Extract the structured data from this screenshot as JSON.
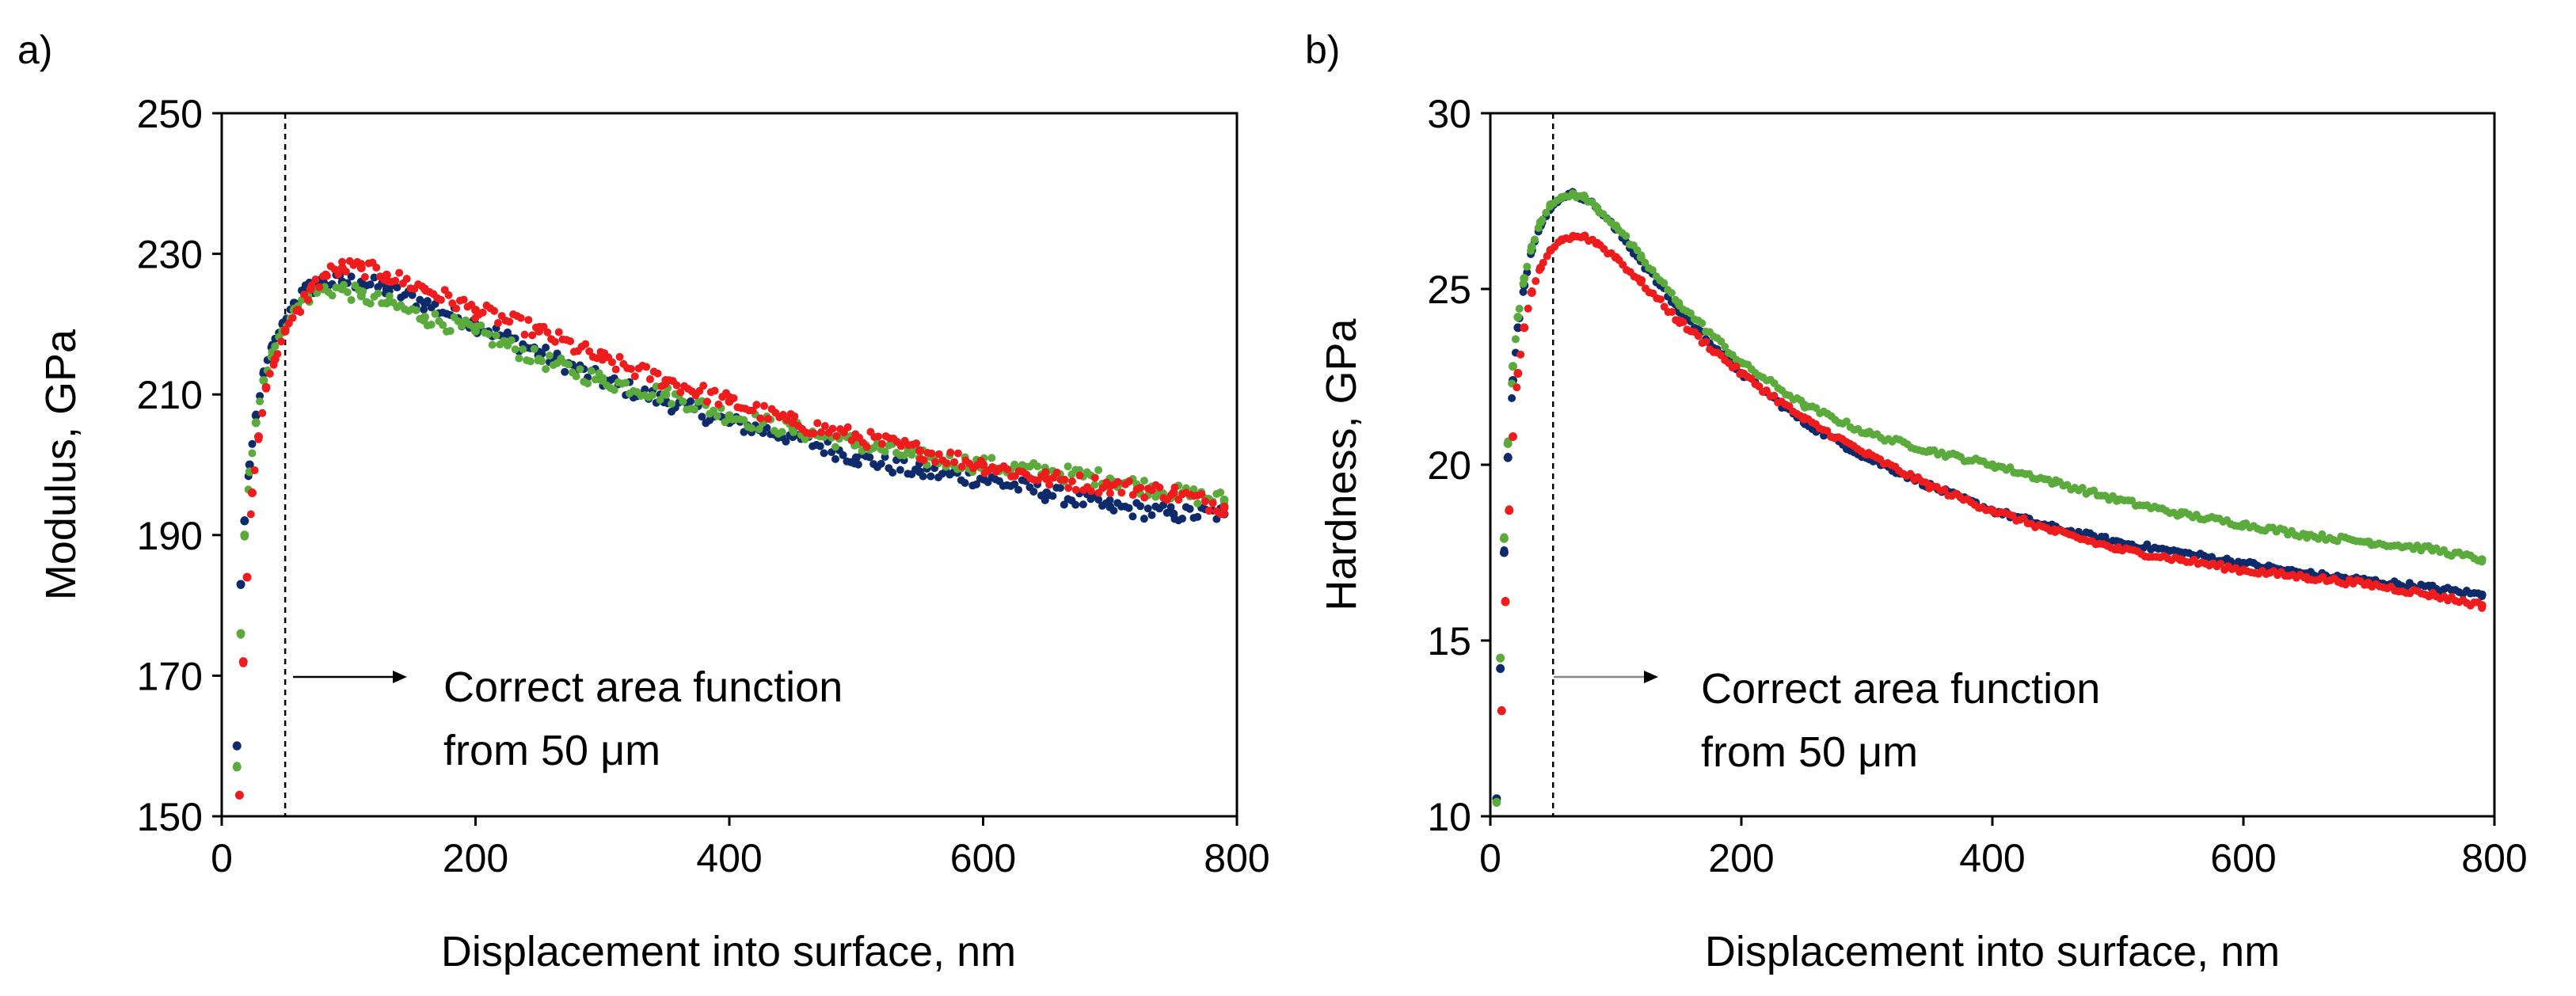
{
  "panels": [
    {
      "label": "a)",
      "annotation": [
        "Correct area function",
        "from 50 μm"
      ]
    },
    {
      "label": "b)",
      "annotation": [
        "Correct area function",
        "from 50 μm"
      ]
    }
  ],
  "colors": {
    "navy": "#0d2a6b",
    "green": "#5aaa3c",
    "red": "#ee1c1c"
  },
  "chart_data": [
    {
      "type": "scatter",
      "title": "",
      "xlabel": "Displacement into surface, nm",
      "ylabel": "Modulus, GPa",
      "xlim": [
        0,
        800
      ],
      "ylim": [
        150,
        250
      ],
      "xticks": [
        0,
        200,
        400,
        600,
        800
      ],
      "yticks": [
        150,
        170,
        190,
        210,
        230,
        250
      ],
      "grid": false,
      "reference_line_x": 50,
      "series": [
        {
          "name": "navy",
          "color": "#0d2a6b",
          "x": [
            12,
            15,
            18,
            22,
            27,
            33,
            40,
            48,
            57,
            68,
            80,
            95,
            110,
            130,
            160,
            200,
            250,
            300,
            350,
            400,
            450,
            500,
            550,
            600,
            650,
            700,
            750,
            790
          ],
          "y": [
            160,
            183,
            192,
            200,
            207,
            213,
            217,
            220,
            223,
            225,
            226,
            226,
            226,
            225,
            223,
            220,
            216,
            212,
            209,
            206,
            204,
            201,
            199,
            198,
            196,
            194,
            193,
            193
          ]
        },
        {
          "name": "green",
          "color": "#5aaa3c",
          "x": [
            12,
            15,
            18,
            22,
            27,
            33,
            40,
            48,
            57,
            68,
            80,
            95,
            110,
            130,
            160,
            200,
            250,
            300,
            350,
            400,
            450,
            500,
            550,
            600,
            650,
            700,
            750,
            790
          ],
          "y": [
            157,
            176,
            190,
            199,
            206,
            212,
            216,
            219,
            222,
            224,
            225,
            225,
            224,
            223,
            221,
            219,
            215,
            212,
            210,
            207,
            205,
            203,
            201,
            200,
            199,
            198,
            196,
            195
          ]
        },
        {
          "name": "red",
          "color": "#ee1c1c",
          "x": [
            14,
            17,
            20,
            24,
            29,
            35,
            42,
            50,
            60,
            70,
            82,
            95,
            110,
            130,
            160,
            200,
            250,
            300,
            350,
            400,
            450,
            500,
            550,
            600,
            650,
            700,
            750,
            790
          ],
          "y": [
            153,
            172,
            184,
            196,
            204,
            211,
            215,
            219,
            222,
            225,
            227,
            228,
            228,
            227,
            225,
            222,
            219,
            215,
            212,
            209,
            206,
            204,
            202,
            200,
            198,
            197,
            196,
            194
          ]
        }
      ]
    },
    {
      "type": "scatter",
      "title": "",
      "xlabel": "Displacement into surface, nm",
      "ylabel": "Hardness, GPa",
      "xlim": [
        0,
        800
      ],
      "ylim": [
        10,
        30
      ],
      "xticks": [
        0,
        200,
        400,
        600,
        800
      ],
      "yticks": [
        10,
        15,
        20,
        25,
        30
      ],
      "grid": false,
      "reference_line_x": 50,
      "series": [
        {
          "name": "navy",
          "color": "#0d2a6b",
          "x": [
            5,
            8,
            11,
            14,
            18,
            22,
            27,
            33,
            40,
            48,
            57,
            66,
            75,
            85,
            100,
            120,
            150,
            200,
            250,
            300,
            350,
            400,
            450,
            500,
            550,
            600,
            650,
            700,
            750,
            790
          ],
          "y": [
            10.5,
            14.2,
            17.5,
            20.2,
            22.4,
            23.9,
            25.1,
            26.1,
            26.8,
            27.3,
            27.6,
            27.7,
            27.6,
            27.3,
            26.7,
            25.8,
            24.4,
            22.6,
            21.2,
            20.2,
            19.4,
            18.7,
            18.2,
            17.8,
            17.5,
            17.2,
            16.9,
            16.7,
            16.5,
            16.3
          ]
        },
        {
          "name": "green",
          "color": "#5aaa3c",
          "x": [
            5,
            8,
            11,
            14,
            18,
            22,
            27,
            33,
            40,
            48,
            57,
            66,
            75,
            85,
            100,
            120,
            150,
            200,
            250,
            300,
            350,
            400,
            450,
            500,
            550,
            600,
            650,
            700,
            750,
            790
          ],
          "y": [
            10.4,
            14.5,
            17.9,
            20.6,
            22.8,
            24.2,
            25.3,
            26.2,
            26.9,
            27.4,
            27.6,
            27.7,
            27.6,
            27.3,
            26.8,
            25.9,
            24.6,
            22.9,
            21.7,
            20.9,
            20.4,
            20.0,
            19.5,
            19.0,
            18.6,
            18.3,
            18.0,
            17.8,
            17.6,
            17.3
          ]
        },
        {
          "name": "red",
          "color": "#ee1c1c",
          "x": [
            9,
            12,
            15,
            18,
            22,
            27,
            33,
            40,
            48,
            57,
            66,
            75,
            85,
            100,
            120,
            150,
            200,
            250,
            300,
            350,
            400,
            450,
            500,
            550,
            600,
            650,
            700,
            750,
            790
          ],
          "y": [
            13.0,
            16.1,
            18.7,
            20.8,
            22.6,
            23.9,
            24.9,
            25.6,
            26.1,
            26.4,
            26.5,
            26.5,
            26.3,
            25.9,
            25.2,
            24.1,
            22.6,
            21.3,
            20.3,
            19.4,
            18.7,
            18.1,
            17.6,
            17.3,
            17.0,
            16.8,
            16.6,
            16.3,
            16.0
          ]
        }
      ]
    }
  ]
}
